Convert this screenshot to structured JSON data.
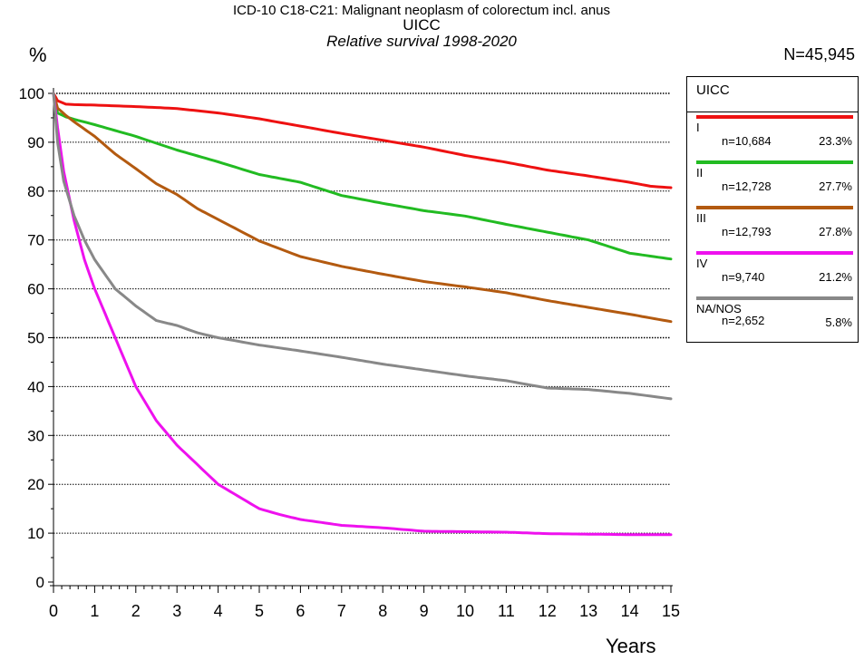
{
  "chart_data": {
    "type": "line",
    "title": "ICD-10 C18-C21: Malignant neoplasm of colorectum incl. anus",
    "subtitle": "UICC",
    "subtitle2": "Relative survival 1998-2020",
    "total_n": "N=45,945",
    "ylabel": "%",
    "xlabel": "Years",
    "xlim": [
      0,
      15
    ],
    "ylim": [
      0,
      100
    ],
    "x_ticks": [
      "0",
      "1",
      "2",
      "3",
      "4",
      "5",
      "6",
      "7",
      "8",
      "9",
      "10",
      "11",
      "12",
      "13",
      "14",
      "15"
    ],
    "y_ticks": [
      "0",
      "10",
      "20",
      "30",
      "40",
      "50",
      "60",
      "70",
      "80",
      "90",
      "100"
    ],
    "grid": "horizontal dotted every 10%",
    "legend_position": "right",
    "legend_title": "UICC",
    "series": [
      {
        "name": "I",
        "n_label": "n=10,684",
        "pct_label": "23.3%",
        "color": "#ee1111",
        "x": [
          0,
          0.1,
          0.3,
          0.5,
          1,
          2,
          3,
          4,
          5,
          6,
          7,
          8,
          9,
          10,
          11,
          12,
          13,
          14,
          14.5,
          15
        ],
        "y": [
          100,
          98.5,
          97.8,
          97.7,
          97.6,
          97.3,
          96.9,
          96.0,
          94.8,
          93.3,
          91.8,
          90.4,
          89.0,
          87.3,
          85.9,
          84.3,
          83.1,
          81.8,
          81.0,
          80.7
        ]
      },
      {
        "name": "II",
        "n_label": "n=12,728",
        "pct_label": "27.7%",
        "color": "#22bb22",
        "x": [
          0,
          0.1,
          0.3,
          0.5,
          1,
          2,
          3,
          4,
          5,
          6,
          7,
          8,
          9,
          10,
          11,
          12,
          13,
          14,
          15
        ],
        "y": [
          100,
          96.0,
          95.2,
          94.7,
          93.6,
          91.2,
          88.4,
          86.0,
          83.4,
          81.8,
          79.1,
          77.5,
          76.0,
          74.9,
          73.2,
          71.6,
          70.0,
          67.3,
          66.1
        ]
      },
      {
        "name": "III",
        "n_label": "n=12,793",
        "pct_label": "27.8%",
        "color": "#b35a10",
        "x": [
          0,
          0.1,
          0.3,
          0.5,
          1,
          1.5,
          2,
          2.5,
          3,
          3.5,
          4,
          5,
          6,
          7,
          8,
          9,
          10,
          11,
          12,
          13,
          14,
          15
        ],
        "y": [
          100,
          97.0,
          95.5,
          94.2,
          91.2,
          87.6,
          84.6,
          81.5,
          79.3,
          76.4,
          74.2,
          69.8,
          66.6,
          64.6,
          63.0,
          61.5,
          60.4,
          59.2,
          57.6,
          56.2,
          54.8,
          53.3
        ]
      },
      {
        "name": "IV",
        "n_label": "n=9,740",
        "pct_label": "21.2%",
        "color": "#ee11ee",
        "x": [
          0,
          0.1,
          0.25,
          0.5,
          0.75,
          1,
          1.25,
          1.5,
          2,
          2.5,
          3,
          3.5,
          4,
          4.5,
          5,
          5.5,
          6,
          7,
          8,
          9,
          10,
          11,
          12,
          13,
          14,
          15
        ],
        "y": [
          100,
          93.0,
          84.0,
          74.0,
          66.0,
          60.0,
          55.0,
          50.0,
          40.0,
          33.0,
          28.0,
          24.0,
          20.0,
          17.5,
          15.0,
          13.8,
          12.8,
          11.6,
          11.1,
          10.4,
          10.3,
          10.2,
          9.9,
          9.8,
          9.7,
          9.7
        ]
      },
      {
        "name": "NA/NOS",
        "n_label": "n=2,652",
        "pct_label": "5.8%",
        "color": "#888888",
        "x": [
          0,
          0.1,
          0.25,
          0.5,
          0.75,
          1,
          1.5,
          2,
          2.5,
          3,
          3.5,
          4,
          5,
          6,
          7,
          8,
          9,
          10,
          11,
          12,
          13,
          14,
          15
        ],
        "y": [
          100,
          90.0,
          82.0,
          75.0,
          70.0,
          66.0,
          60.0,
          56.5,
          53.5,
          52.5,
          51.0,
          50.0,
          48.5,
          47.3,
          46.0,
          44.6,
          43.4,
          42.2,
          41.2,
          39.7,
          39.4,
          38.6,
          37.5
        ]
      }
    ]
  }
}
